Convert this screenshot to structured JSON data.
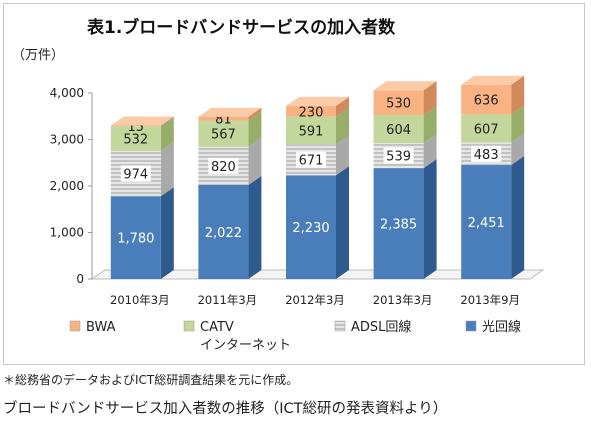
{
  "chart_data": {
    "type": "bar",
    "stacked": true,
    "three_d": true,
    "title": "表1.ブロードバンドサービスの加入者数",
    "unit_label": "（万件）",
    "categories": [
      "2010年3月",
      "2011年3月",
      "2012年3月",
      "2013年3月",
      "2013年9月"
    ],
    "series": [
      {
        "name": "光回線",
        "color": "#4a7ebb",
        "side": "#2f5a8e",
        "top": "#6f9bd1",
        "light_label": true,
        "values": [
          1780,
          2022,
          2230,
          2385,
          2451
        ]
      },
      {
        "name": "ADSL回線",
        "color": "#d0d0d0",
        "side": "#a9a9a9",
        "top": "#e2e2e2",
        "hatched": true,
        "light_label": false,
        "values": [
          974,
          820,
          671,
          539,
          483
        ]
      },
      {
        "name": "CATV\nインターネット",
        "color": "#c3d69b",
        "side": "#98ad6a",
        "top": "#d6e4b6",
        "light_label": false,
        "values": [
          532,
          567,
          591,
          604,
          607
        ]
      },
      {
        "name": "BWA",
        "color": "#f9b383",
        "side": "#d28a5c",
        "top": "#fbcaa7",
        "light_label": false,
        "values": [
          15,
          81,
          230,
          530,
          636
        ]
      }
    ],
    "legend_order": [
      "BWA",
      "CATV\nインターネット",
      "ADSL回線",
      "光回線"
    ],
    "yticks": [
      "0",
      "1,000",
      "2,000",
      "3,000",
      "4,000"
    ],
    "ylim": [
      0,
      4000
    ],
    "legend_position": "bottom",
    "grid": false
  },
  "footnote": "＊総務省のデータおよびICT総研調査結果を元に作成。",
  "caption": "ブロードバンドサービス加入者数の推移（ICT総研の発表資料より）"
}
